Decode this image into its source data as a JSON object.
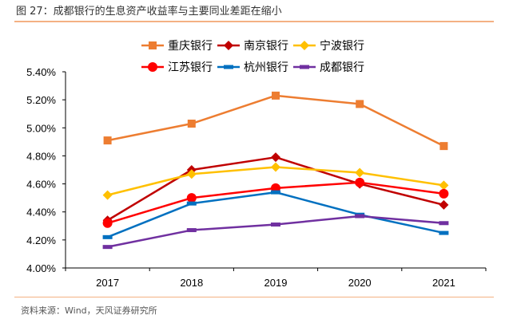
{
  "figure": {
    "title": "图 27：成都银行的生息资产收益率与主要同业差距在缩小",
    "source": "资料来源：Wind，天风证券研究所"
  },
  "chart_data": {
    "type": "line",
    "title": "",
    "xlabel": "",
    "ylabel": "",
    "categories": [
      "2017",
      "2018",
      "2019",
      "2020",
      "2021"
    ],
    "ylim": [
      4.0,
      5.4
    ],
    "yticks": [
      4.0,
      4.2,
      4.4,
      4.6,
      4.8,
      5.0,
      5.2,
      5.4
    ],
    "ytick_labels": [
      "4.00%",
      "4.20%",
      "4.40%",
      "4.60%",
      "4.80%",
      "5.00%",
      "5.20%",
      "5.40%"
    ],
    "grid": false,
    "legend_position": "top",
    "series": [
      {
        "name": "重庆银行",
        "color": "#ed7d31",
        "marker": "square",
        "values": [
          4.91,
          5.03,
          5.23,
          5.17,
          4.87
        ]
      },
      {
        "name": "南京银行",
        "color": "#c00000",
        "marker": "diamond",
        "values": [
          4.34,
          4.7,
          4.79,
          4.6,
          4.45
        ]
      },
      {
        "name": "宁波银行",
        "color": "#ffc000",
        "marker": "diamond",
        "values": [
          4.52,
          4.67,
          4.72,
          4.68,
          4.59
        ]
      },
      {
        "name": "江苏银行",
        "color": "#ff0000",
        "marker": "circle",
        "values": [
          4.32,
          4.5,
          4.57,
          4.61,
          4.53
        ]
      },
      {
        "name": "杭州银行",
        "color": "#0070c0",
        "marker": "dash",
        "values": [
          4.22,
          4.46,
          4.54,
          4.38,
          4.25
        ]
      },
      {
        "name": "成都银行",
        "color": "#7030a0",
        "marker": "dash",
        "values": [
          4.15,
          4.27,
          4.31,
          4.37,
          4.32
        ]
      }
    ]
  }
}
